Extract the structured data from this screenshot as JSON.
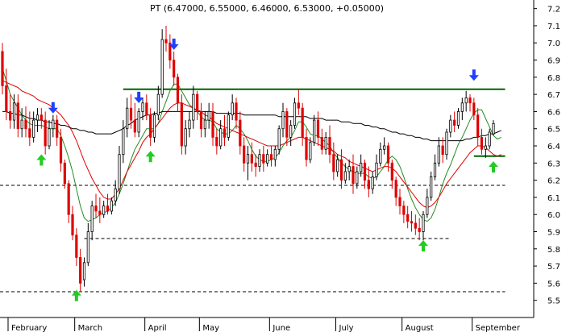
{
  "chart_data": {
    "type": "candlestick",
    "title": "PT (6.47000, 6.55000, 6.46000, 6.53000, +0.05000)",
    "ylim": [
      5.4,
      7.25
    ],
    "y_ticks": [
      "7.2",
      "7.1",
      "7.0",
      "6.9",
      "6.8",
      "6.7",
      "6.6",
      "6.5",
      "6.4",
      "6.3",
      "6.2",
      "6.1",
      "6.0",
      "5.9",
      "5.8",
      "5.7",
      "5.6",
      "5.5"
    ],
    "x_ticks": [
      "February",
      "March",
      "April",
      "May",
      "June",
      "July",
      "August",
      "September"
    ],
    "grid": false,
    "colors": {
      "up_candle": "#ffffff",
      "down_candle": "#e00000",
      "candle_outline": "#000000",
      "ma_short": "#228b22",
      "ma_mid": "#e00000",
      "ma_long": "#000000",
      "resistance": "#006400",
      "support": "#000000",
      "buy_arrow": "#22cc22",
      "sell_arrow": "#1e40ff"
    },
    "candles": [
      [
        6.95,
        7.0,
        6.7,
        6.75
      ],
      [
        6.75,
        6.85,
        6.55,
        6.6
      ],
      [
        6.6,
        6.7,
        6.5,
        6.55
      ],
      [
        6.55,
        6.7,
        6.5,
        6.65
      ],
      [
        6.65,
        6.7,
        6.45,
        6.5
      ],
      [
        6.5,
        6.62,
        6.45,
        6.55
      ],
      [
        6.55,
        6.63,
        6.45,
        6.5
      ],
      [
        6.5,
        6.6,
        6.4,
        6.45
      ],
      [
        6.45,
        6.6,
        6.42,
        6.55
      ],
      [
        6.55,
        6.62,
        6.48,
        6.58
      ],
      [
        6.58,
        6.62,
        6.5,
        6.55
      ],
      [
        6.55,
        6.6,
        6.35,
        6.4
      ],
      [
        6.4,
        6.55,
        6.38,
        6.5
      ],
      [
        6.5,
        6.58,
        6.45,
        6.55
      ],
      [
        6.55,
        6.58,
        6.4,
        6.45
      ],
      [
        6.45,
        6.5,
        6.25,
        6.3
      ],
      [
        6.3,
        6.32,
        6.15,
        6.18
      ],
      [
        6.18,
        6.2,
        5.95,
        6.0
      ],
      [
        6.0,
        6.05,
        5.85,
        5.88
      ],
      [
        5.88,
        5.92,
        5.7,
        5.75
      ],
      [
        5.75,
        5.8,
        5.55,
        5.6
      ],
      [
        5.62,
        5.75,
        5.58,
        5.72
      ],
      [
        5.72,
        5.95,
        5.7,
        5.9
      ],
      [
        5.9,
        6.08,
        5.85,
        6.05
      ],
      [
        6.05,
        6.12,
        5.98,
        6.02
      ],
      [
        6.02,
        6.1,
        5.95,
        6.0
      ],
      [
        6.0,
        6.08,
        5.98,
        6.05
      ],
      [
        6.05,
        6.12,
        6.0,
        6.02
      ],
      [
        6.02,
        6.1,
        6.0,
        6.08
      ],
      [
        6.08,
        6.2,
        6.05,
        6.15
      ],
      [
        6.15,
        6.4,
        6.12,
        6.35
      ],
      [
        6.35,
        6.55,
        6.3,
        6.5
      ],
      [
        6.5,
        6.68,
        6.45,
        6.62
      ],
      [
        6.62,
        6.7,
        6.5,
        6.55
      ],
      [
        6.55,
        6.65,
        6.45,
        6.48
      ],
      [
        6.48,
        6.62,
        6.45,
        6.6
      ],
      [
        6.6,
        6.68,
        6.55,
        6.65
      ],
      [
        6.65,
        6.7,
        6.55,
        6.58
      ],
      [
        6.58,
        6.62,
        6.4,
        6.45
      ],
      [
        6.45,
        6.6,
        6.42,
        6.58
      ],
      [
        6.58,
        6.75,
        6.55,
        6.7
      ],
      [
        6.7,
        7.08,
        6.68,
        7.02
      ],
      [
        7.02,
        7.1,
        6.95,
        7.0
      ],
      [
        7.0,
        7.05,
        6.85,
        6.9
      ],
      [
        6.9,
        6.95,
        6.75,
        6.8
      ],
      [
        6.8,
        6.82,
        6.6,
        6.65
      ],
      [
        6.65,
        6.7,
        6.35,
        6.4
      ],
      [
        6.4,
        6.55,
        6.35,
        6.5
      ],
      [
        6.5,
        6.6,
        6.45,
        6.55
      ],
      [
        6.55,
        6.75,
        6.5,
        6.7
      ],
      [
        6.7,
        6.72,
        6.55,
        6.6
      ],
      [
        6.6,
        6.65,
        6.45,
        6.5
      ],
      [
        6.5,
        6.6,
        6.45,
        6.55
      ],
      [
        6.55,
        6.65,
        6.5,
        6.6
      ],
      [
        6.6,
        6.65,
        6.4,
        6.45
      ],
      [
        6.45,
        6.5,
        6.35,
        6.4
      ],
      [
        6.4,
        6.55,
        6.38,
        6.5
      ],
      [
        6.5,
        6.58,
        6.4,
        6.45
      ],
      [
        6.45,
        6.6,
        6.43,
        6.58
      ],
      [
        6.58,
        6.7,
        6.55,
        6.65
      ],
      [
        6.65,
        6.68,
        6.5,
        6.55
      ],
      [
        6.55,
        6.6,
        6.35,
        6.4
      ],
      [
        6.4,
        6.45,
        6.25,
        6.3
      ],
      [
        6.3,
        6.4,
        6.2,
        6.35
      ],
      [
        6.35,
        6.42,
        6.25,
        6.3
      ],
      [
        6.3,
        6.35,
        6.22,
        6.28
      ],
      [
        6.28,
        6.38,
        6.25,
        6.35
      ],
      [
        6.35,
        6.4,
        6.25,
        6.3
      ],
      [
        6.3,
        6.38,
        6.28,
        6.35
      ],
      [
        6.35,
        6.4,
        6.28,
        6.32
      ],
      [
        6.32,
        6.4,
        6.28,
        6.38
      ],
      [
        6.38,
        6.52,
        6.35,
        6.5
      ],
      [
        6.5,
        6.65,
        6.45,
        6.6
      ],
      [
        6.6,
        6.62,
        6.4,
        6.45
      ],
      [
        6.45,
        6.55,
        6.4,
        6.52
      ],
      [
        6.52,
        6.68,
        6.5,
        6.65
      ],
      [
        6.65,
        6.73,
        6.58,
        6.62
      ],
      [
        6.62,
        6.65,
        6.4,
        6.45
      ],
      [
        6.45,
        6.5,
        6.28,
        6.32
      ],
      [
        6.32,
        6.45,
        6.3,
        6.42
      ],
      [
        6.42,
        6.58,
        6.4,
        6.55
      ],
      [
        6.55,
        6.6,
        6.4,
        6.45
      ],
      [
        6.45,
        6.5,
        6.35,
        6.38
      ],
      [
        6.38,
        6.48,
        6.35,
        6.45
      ],
      [
        6.45,
        6.52,
        6.3,
        6.35
      ],
      [
        6.35,
        6.42,
        6.2,
        6.25
      ],
      [
        6.25,
        6.35,
        6.22,
        6.32
      ],
      [
        6.32,
        6.38,
        6.15,
        6.2
      ],
      [
        6.2,
        6.3,
        6.18,
        6.25
      ],
      [
        6.25,
        6.32,
        6.2,
        6.28
      ],
      [
        6.28,
        6.35,
        6.12,
        6.18
      ],
      [
        6.18,
        6.28,
        6.15,
        6.25
      ],
      [
        6.25,
        6.35,
        6.22,
        6.3
      ],
      [
        6.3,
        6.32,
        6.15,
        6.2
      ],
      [
        6.2,
        6.28,
        6.1,
        6.15
      ],
      [
        6.15,
        6.25,
        6.12,
        6.22
      ],
      [
        6.22,
        6.35,
        6.2,
        6.3
      ],
      [
        6.3,
        6.42,
        6.28,
        6.38
      ],
      [
        6.38,
        6.45,
        6.35,
        6.4
      ],
      [
        6.4,
        6.42,
        6.25,
        6.3
      ],
      [
        6.3,
        6.32,
        6.15,
        6.2
      ],
      [
        6.2,
        6.22,
        6.05,
        6.1
      ],
      [
        6.1,
        6.15,
        6.0,
        6.05
      ],
      [
        6.05,
        6.08,
        5.95,
        6.0
      ],
      [
        6.0,
        6.05,
        5.92,
        5.96
      ],
      [
        5.96,
        6.02,
        5.9,
        5.95
      ],
      [
        5.95,
        6.0,
        5.88,
        5.92
      ],
      [
        5.92,
        5.98,
        5.85,
        5.9
      ],
      [
        5.9,
        6.02,
        5.85,
        6.0
      ],
      [
        6.0,
        6.15,
        5.98,
        6.1
      ],
      [
        6.1,
        6.25,
        6.08,
        6.22
      ],
      [
        6.22,
        6.35,
        6.2,
        6.3
      ],
      [
        6.3,
        6.45,
        6.28,
        6.4
      ],
      [
        6.4,
        6.45,
        6.3,
        6.35
      ],
      [
        6.35,
        6.5,
        6.32,
        6.48
      ],
      [
        6.48,
        6.58,
        6.45,
        6.55
      ],
      [
        6.55,
        6.6,
        6.48,
        6.52
      ],
      [
        6.52,
        6.62,
        6.5,
        6.6
      ],
      [
        6.6,
        6.68,
        6.55,
        6.65
      ],
      [
        6.65,
        6.72,
        6.6,
        6.68
      ],
      [
        6.68,
        6.7,
        6.6,
        6.65
      ],
      [
        6.65,
        6.68,
        6.55,
        6.58
      ],
      [
        6.58,
        6.62,
        6.4,
        6.45
      ],
      [
        6.45,
        6.5,
        6.35,
        6.38
      ],
      [
        6.38,
        6.45,
        6.33,
        6.4
      ],
      [
        6.4,
        6.5,
        6.38,
        6.48
      ],
      [
        6.47,
        6.55,
        6.46,
        6.53
      ]
    ],
    "series": [
      {
        "type": "moving_average",
        "values": [
          6.85,
          6.78,
          6.7,
          6.66,
          6.62,
          6.58,
          6.55,
          6.53,
          6.52,
          6.52,
          6.52,
          6.51,
          6.5,
          6.5,
          6.5,
          6.46,
          6.4,
          6.33,
          6.25,
          6.15,
          6.05,
          5.98,
          5.96,
          5.97,
          5.98,
          6.0,
          6.01,
          6.02,
          6.04,
          6.07,
          6.12,
          6.18,
          6.25,
          6.32,
          6.38,
          6.42,
          6.46,
          6.5,
          6.5,
          6.5,
          6.53,
          6.6,
          6.66,
          6.72,
          6.76,
          6.76,
          6.72,
          6.68,
          6.64,
          6.62,
          6.6,
          6.57,
          6.55,
          6.55,
          6.54,
          6.5,
          6.48,
          6.47,
          6.47,
          6.49,
          6.52,
          6.5,
          6.47,
          6.43,
          6.38,
          6.34,
          6.32,
          6.31,
          6.31,
          6.32,
          6.33,
          6.36,
          6.4,
          6.43,
          6.45,
          6.49,
          6.54,
          6.54,
          6.51,
          6.47,
          6.46,
          6.46,
          6.44,
          6.42,
          6.4,
          6.36,
          6.33,
          6.3,
          6.28,
          6.26,
          6.25,
          6.24,
          6.24,
          6.24,
          6.22,
          6.21,
          6.22,
          6.25,
          6.28,
          6.32,
          6.34,
          6.32,
          6.28,
          6.22,
          6.15,
          6.09,
          6.04,
          6.0,
          5.97,
          5.96,
          5.98,
          6.03,
          6.1,
          6.18,
          6.24,
          6.29,
          6.35,
          6.41,
          6.45,
          6.5,
          6.55,
          6.59,
          6.61,
          6.61,
          6.56,
          6.51,
          6.46,
          6.44,
          6.45
        ]
      },
      {
        "type": "moving_average",
        "values": [
          6.78,
          6.77,
          6.76,
          6.75,
          6.74,
          6.72,
          6.71,
          6.7,
          6.69,
          6.67,
          6.66,
          6.65,
          6.64,
          6.62,
          6.6,
          6.58,
          6.55,
          6.52,
          6.48,
          6.43,
          6.37,
          6.31,
          6.26,
          6.21,
          6.17,
          6.13,
          6.1,
          6.09,
          6.09,
          6.12,
          6.15,
          6.2,
          6.25,
          6.29,
          6.33,
          6.37,
          6.42,
          6.45,
          6.47,
          6.5,
          6.53,
          6.56,
          6.59,
          6.62,
          6.64,
          6.65,
          6.65,
          6.64,
          6.63,
          6.62,
          6.61,
          6.6,
          6.58,
          6.57,
          6.55,
          6.53,
          6.52,
          6.51,
          6.5,
          6.49,
          6.48,
          6.47,
          6.46,
          6.45,
          6.44,
          6.43,
          6.42,
          6.41,
          6.4,
          6.4,
          6.4,
          6.4,
          6.41,
          6.42,
          6.43,
          6.44,
          6.45,
          6.45,
          6.44,
          6.43,
          6.42,
          6.41,
          6.4,
          6.39,
          6.38,
          6.37,
          6.35,
          6.34,
          6.33,
          6.31,
          6.3,
          6.29,
          6.28,
          6.27,
          6.26,
          6.25,
          6.26,
          6.27,
          6.28,
          6.28,
          6.27,
          6.25,
          6.22,
          6.19,
          6.16,
          6.13,
          6.1,
          6.07,
          6.05,
          6.04,
          6.05,
          6.07,
          6.1,
          6.14,
          6.18,
          6.21,
          6.24,
          6.27,
          6.3,
          6.33,
          6.36,
          6.38,
          6.4,
          6.4,
          6.39,
          6.37,
          6.35,
          6.34,
          6.35
        ]
      },
      {
        "type": "moving_average",
        "values": [
          6.6,
          6.6,
          6.59,
          6.59,
          6.58,
          6.58,
          6.57,
          6.56,
          6.56,
          6.55,
          6.55,
          6.54,
          6.54,
          6.53,
          6.53,
          6.52,
          6.52,
          6.51,
          6.5,
          6.5,
          6.49,
          6.49,
          6.48,
          6.48,
          6.47,
          6.47,
          6.47,
          6.47,
          6.47,
          6.48,
          6.49,
          6.5,
          6.52,
          6.53,
          6.55,
          6.56,
          6.57,
          6.58,
          6.58,
          6.59,
          6.59,
          6.6,
          6.6,
          6.6,
          6.6,
          6.6,
          6.6,
          6.6,
          6.6,
          6.6,
          6.6,
          6.6,
          6.6,
          6.6,
          6.6,
          6.59,
          6.59,
          6.59,
          6.59,
          6.59,
          6.59,
          6.59,
          6.58,
          6.58,
          6.58,
          6.58,
          6.58,
          6.58,
          6.58,
          6.58,
          6.58,
          6.57,
          6.57,
          6.57,
          6.57,
          6.57,
          6.57,
          6.57,
          6.57,
          6.56,
          6.56,
          6.56,
          6.56,
          6.55,
          6.55,
          6.55,
          6.55,
          6.54,
          6.54,
          6.54,
          6.53,
          6.53,
          6.53,
          6.52,
          6.52,
          6.51,
          6.51,
          6.5,
          6.5,
          6.49,
          6.48,
          6.48,
          6.47,
          6.47,
          6.46,
          6.46,
          6.45,
          6.45,
          6.44,
          6.44,
          6.43,
          6.43,
          6.43,
          6.43,
          6.43,
          6.43,
          6.43,
          6.43,
          6.43,
          6.44,
          6.44,
          6.45,
          6.45,
          6.46,
          6.46,
          6.47,
          6.47,
          6.48,
          6.49
        ]
      }
    ],
    "horizontal_lines": [
      {
        "kind": "resistance",
        "style": "solid",
        "y": 6.73,
        "x_from": 31,
        "x_to": 129
      },
      {
        "kind": "support",
        "style": "solid",
        "y": 6.34,
        "x_from": 121,
        "x_to": 129
      },
      {
        "kind": "support",
        "style": "dashed",
        "y": 6.17,
        "x_from": 0,
        "x_to": 129
      },
      {
        "kind": "support",
        "style": "dashed",
        "y": 5.86,
        "x_from": 21,
        "x_to": 115
      },
      {
        "kind": "support",
        "style": "dashed",
        "y": 5.55,
        "x_from": 0,
        "x_to": 129
      }
    ],
    "signals": [
      {
        "type": "buy",
        "index": 10,
        "price": 6.36
      },
      {
        "type": "sell",
        "index": 13,
        "price": 6.58
      },
      {
        "type": "buy",
        "index": 19,
        "price": 5.57
      },
      {
        "type": "sell",
        "index": 35,
        "price": 6.64
      },
      {
        "type": "buy",
        "index": 38,
        "price": 6.38
      },
      {
        "type": "sell",
        "index": 44,
        "price": 6.95
      },
      {
        "type": "buy",
        "index": 108,
        "price": 5.86
      },
      {
        "type": "sell",
        "index": 121,
        "price": 6.77
      },
      {
        "type": "buy",
        "index": 126,
        "price": 6.32
      }
    ],
    "x_tick_positions": [
      0,
      20,
      38,
      52,
      70,
      87,
      104,
      122
    ]
  }
}
